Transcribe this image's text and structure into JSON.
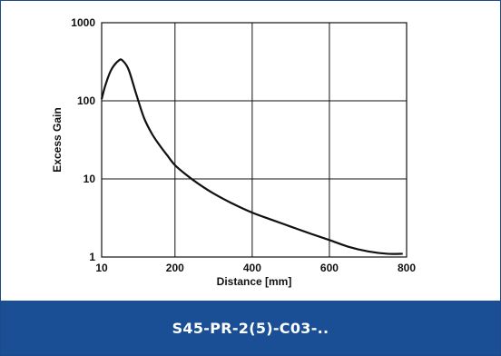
{
  "chart_data": {
    "type": "line",
    "title": "",
    "xlabel": "Distance [mm]",
    "ylabel": "Excess Gain",
    "xscale": "linear",
    "yscale": "log",
    "xlim": [
      10,
      800
    ],
    "ylim": [
      1,
      1000
    ],
    "x_ticks": [
      {
        "value": 10,
        "label": "10"
      },
      {
        "value": 200,
        "label": "200"
      },
      {
        "value": 400,
        "label": "400"
      },
      {
        "value": 600,
        "label": "600"
      },
      {
        "value": 800,
        "label": "800"
      }
    ],
    "y_ticks": [
      {
        "value": 1,
        "label": "1"
      },
      {
        "value": 10,
        "label": "10"
      },
      {
        "value": 100,
        "label": "100"
      },
      {
        "value": 1000,
        "label": "1000"
      }
    ],
    "grid": true,
    "series": [
      {
        "color": "#111111",
        "points": [
          [
            10,
            105
          ],
          [
            20,
            160
          ],
          [
            35,
            250
          ],
          [
            55,
            330
          ],
          [
            65,
            325
          ],
          [
            80,
            250
          ],
          [
            100,
            120
          ],
          [
            120,
            60
          ],
          [
            140,
            38
          ],
          [
            160,
            27
          ],
          [
            180,
            20
          ],
          [
            200,
            15
          ],
          [
            230,
            11.2
          ],
          [
            260,
            8.7
          ],
          [
            300,
            6.5
          ],
          [
            350,
            4.8
          ],
          [
            400,
            3.7
          ],
          [
            450,
            3.0
          ],
          [
            500,
            2.45
          ],
          [
            550,
            2.0
          ],
          [
            600,
            1.65
          ],
          [
            650,
            1.35
          ],
          [
            700,
            1.18
          ],
          [
            750,
            1.1
          ],
          [
            790,
            1.1
          ]
        ]
      }
    ]
  },
  "footer": {
    "label": "S45-PR-2(5)-C03-.."
  }
}
